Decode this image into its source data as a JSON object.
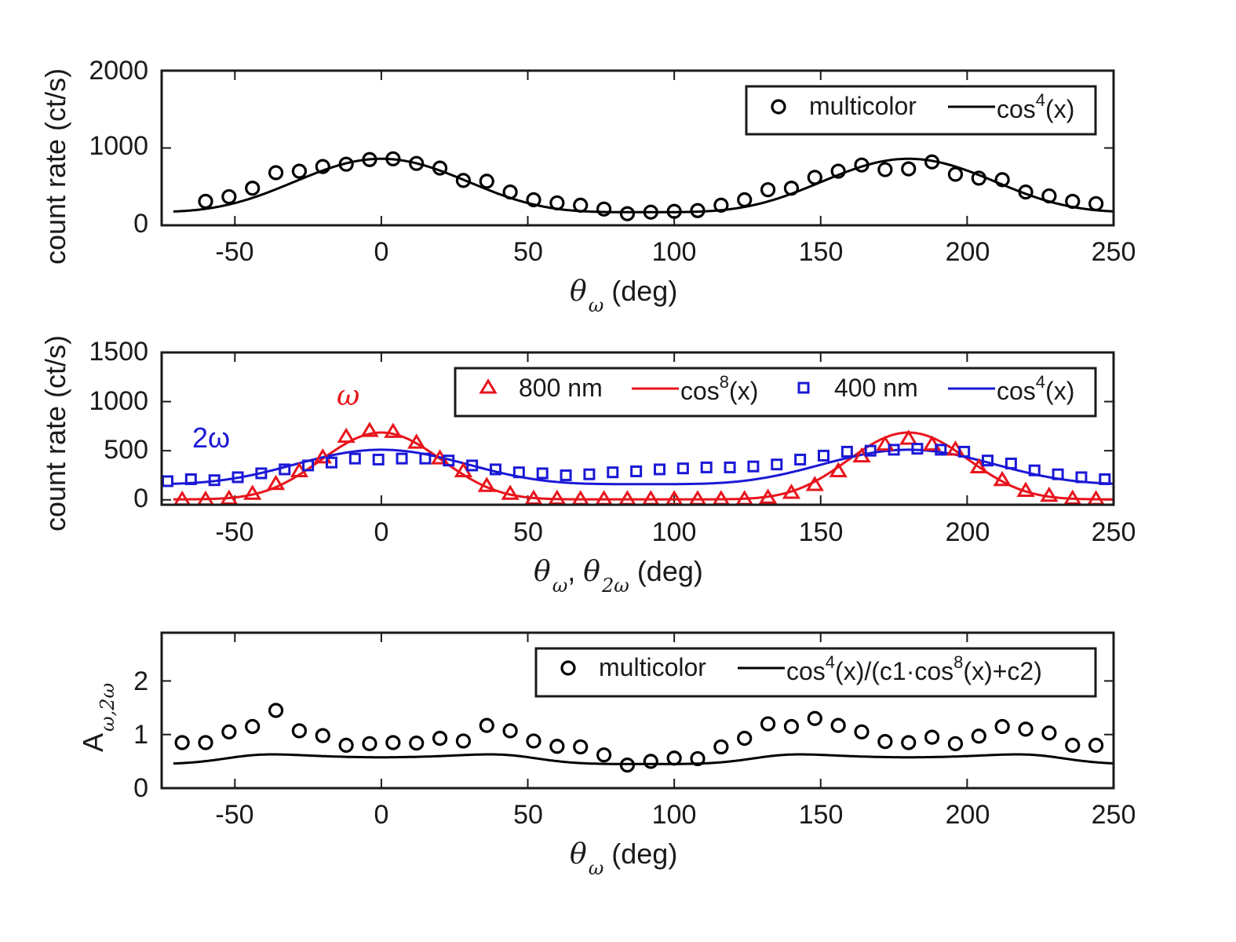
{
  "colors": {
    "black": "#000000",
    "red": "#e8141c",
    "blue": "#1a18d6"
  },
  "chart_data": [
    {
      "type": "scatter",
      "xlim": [
        -75,
        250
      ],
      "ylim": [
        0,
        2000
      ],
      "xticks": [
        -50,
        0,
        50,
        100,
        150,
        200,
        250
      ],
      "yticks": [
        0,
        1000,
        2000
      ],
      "xtick_labels": [
        "-50",
        "0",
        "50",
        "100",
        "150",
        "200",
        "250"
      ],
      "ytick_labels": [
        "0",
        "1000",
        "2000"
      ],
      "ylabel": "count rate (ct/s)",
      "xlabel_sym": "θ",
      "xlabel_sub": "ω",
      "xlabel_rest": " (deg)",
      "legend_position": "top-right",
      "series": [
        {
          "name": "multicolor",
          "kind": "markers",
          "marker": "circle",
          "color": "#000000",
          "x": [
            -60,
            -52,
            -44,
            -36,
            -28,
            -20,
            -12,
            -4,
            4,
            12,
            20,
            28,
            36,
            44,
            52,
            60,
            68,
            76,
            84,
            92,
            100,
            108,
            116,
            124,
            132,
            140,
            148,
            156,
            164,
            172,
            180,
            188,
            196,
            204,
            212,
            220,
            228,
            236,
            244
          ],
          "y": [
            310,
            370,
            480,
            680,
            700,
            760,
            790,
            850,
            860,
            800,
            740,
            580,
            570,
            430,
            330,
            290,
            260,
            210,
            150,
            170,
            180,
            190,
            260,
            330,
            460,
            480,
            620,
            700,
            780,
            720,
            730,
            820,
            660,
            610,
            590,
            430,
            380,
            310,
            280
          ]
        },
        {
          "name": "cos⁴(x)",
          "legend_main": "cos",
          "legend_sup": "4",
          "legend_rest": "(x)",
          "kind": "line",
          "color": "#000000",
          "model": {
            "type": "cos_power",
            "power": 4,
            "A": 690,
            "C": 170,
            "x0": 0
          }
        }
      ]
    },
    {
      "type": "scatter",
      "xlim": [
        -75,
        250
      ],
      "ylim": [
        -50,
        1500
      ],
      "xticks": [
        -50,
        0,
        50,
        100,
        150,
        200,
        250
      ],
      "yticks": [
        0,
        500,
        1000,
        1500
      ],
      "xtick_labels": [
        "-50",
        "0",
        "50",
        "100",
        "150",
        "200",
        "250"
      ],
      "ytick_labels": [
        "0",
        "500",
        "1000",
        "1500"
      ],
      "ylabel": "count rate (ct/s)",
      "xlabel_sym": "θ",
      "xlabel_sub": "ω",
      "xlabel_sep": ", ",
      "xlabel_sym2": "θ",
      "xlabel_sub2": "2ω",
      "xlabel_rest": " (deg)",
      "legend_position": "top-right",
      "annotations": [
        {
          "text": "ω",
          "color": "#e8141c",
          "x": -10,
          "y": 1030
        },
        {
          "text": "2ω",
          "color": "#1a18d6",
          "x": -62,
          "y": 500
        }
      ],
      "series": [
        {
          "name": "800 nm",
          "kind": "markers",
          "marker": "triangle",
          "color": "#e8141c",
          "x": [
            -68,
            -60,
            -52,
            -44,
            -36,
            -28,
            -20,
            -12,
            -4,
            4,
            12,
            20,
            28,
            36,
            44,
            52,
            60,
            68,
            76,
            84,
            92,
            100,
            108,
            116,
            124,
            132,
            140,
            148,
            156,
            164,
            172,
            180,
            188,
            196,
            204,
            212,
            220,
            228,
            236,
            244
          ],
          "y": [
            0,
            0,
            10,
            60,
            160,
            290,
            430,
            640,
            700,
            690,
            580,
            420,
            290,
            140,
            60,
            10,
            10,
            5,
            5,
            5,
            5,
            5,
            5,
            5,
            5,
            20,
            70,
            150,
            290,
            440,
            560,
            620,
            560,
            510,
            330,
            200,
            90,
            40,
            10,
            5
          ]
        },
        {
          "name": "cos⁸(x)",
          "legend_main": "cos",
          "legend_sup": "8",
          "legend_rest": "(x)",
          "kind": "line",
          "color": "#e8141c",
          "model": {
            "type": "cos_power",
            "power": 8,
            "A": 680,
            "C": 5,
            "x0": 0
          }
        },
        {
          "name": "400 nm",
          "kind": "markers",
          "marker": "square",
          "color": "#1a18d6",
          "x": [
            -73,
            -65,
            -57,
            -49,
            -41,
            -33,
            -25,
            -17,
            -9,
            -1,
            7,
            15,
            23,
            31,
            39,
            47,
            55,
            63,
            71,
            79,
            87,
            95,
            103,
            111,
            119,
            127,
            135,
            143,
            151,
            159,
            167,
            175,
            183,
            191,
            199,
            207,
            215,
            223,
            231,
            239,
            247
          ],
          "y": [
            190,
            210,
            200,
            230,
            270,
            310,
            350,
            380,
            420,
            410,
            420,
            420,
            400,
            350,
            310,
            280,
            270,
            250,
            260,
            280,
            290,
            310,
            320,
            330,
            330,
            340,
            360,
            410,
            450,
            490,
            500,
            510,
            520,
            510,
            490,
            400,
            370,
            300,
            260,
            230,
            210
          ]
        },
        {
          "name": "cos⁴(x)",
          "legend_main": "cos",
          "legend_sup": "4",
          "legend_rest": "(x)",
          "kind": "line",
          "color": "#1a18d6",
          "model": {
            "type": "cos_power",
            "power": 4,
            "A": 350,
            "C": 160,
            "x0": 0
          }
        }
      ]
    },
    {
      "type": "scatter",
      "xlim": [
        -75,
        250
      ],
      "ylim": [
        0,
        2.9
      ],
      "xticks": [
        -50,
        0,
        50,
        100,
        150,
        200,
        250
      ],
      "yticks": [
        0,
        1,
        2
      ],
      "xtick_labels": [
        "-50",
        "0",
        "50",
        "100",
        "150",
        "200",
        "250"
      ],
      "ytick_labels": [
        "0",
        "1",
        "2"
      ],
      "ylabel": "A",
      "ylabel_sub": "ω,2ω",
      "xlabel_sym": "θ",
      "xlabel_sub": "ω",
      "xlabel_rest": " (deg)",
      "legend_position": "top-right",
      "series": [
        {
          "name": "multicolor",
          "kind": "markers",
          "marker": "circle",
          "color": "#000000",
          "x": [
            -68,
            -60,
            -52,
            -44,
            -36,
            -28,
            -20,
            -12,
            -4,
            4,
            12,
            20,
            28,
            36,
            44,
            52,
            60,
            68,
            76,
            84,
            92,
            100,
            108,
            116,
            124,
            132,
            140,
            148,
            156,
            164,
            172,
            180,
            188,
            196,
            204,
            212,
            220,
            228,
            236,
            244
          ],
          "y": [
            0.85,
            0.85,
            1.05,
            1.15,
            1.45,
            1.07,
            0.98,
            0.8,
            0.83,
            0.85,
            0.84,
            0.93,
            0.88,
            1.17,
            1.07,
            0.88,
            0.78,
            0.77,
            0.62,
            0.43,
            0.5,
            0.56,
            0.55,
            0.77,
            0.93,
            1.2,
            1.15,
            1.3,
            1.17,
            1.05,
            0.87,
            0.85,
            0.95,
            0.83,
            0.97,
            1.15,
            1.1,
            1.03,
            0.8,
            0.8
          ]
        },
        {
          "name": "cos⁴(x)/(c1·cos⁸(x)+c2)",
          "legend_main": "cos",
          "legend_sup": "4",
          "legend_rest": "(x)/(c1·cos",
          "legend_sup2": "8",
          "legend_rest2": "(x)+c2)",
          "kind": "line",
          "color": "#000000",
          "model": {
            "type": "ratio",
            "a": 0.45,
            "b": 6.33,
            "c": 0.167
          }
        }
      ]
    }
  ]
}
